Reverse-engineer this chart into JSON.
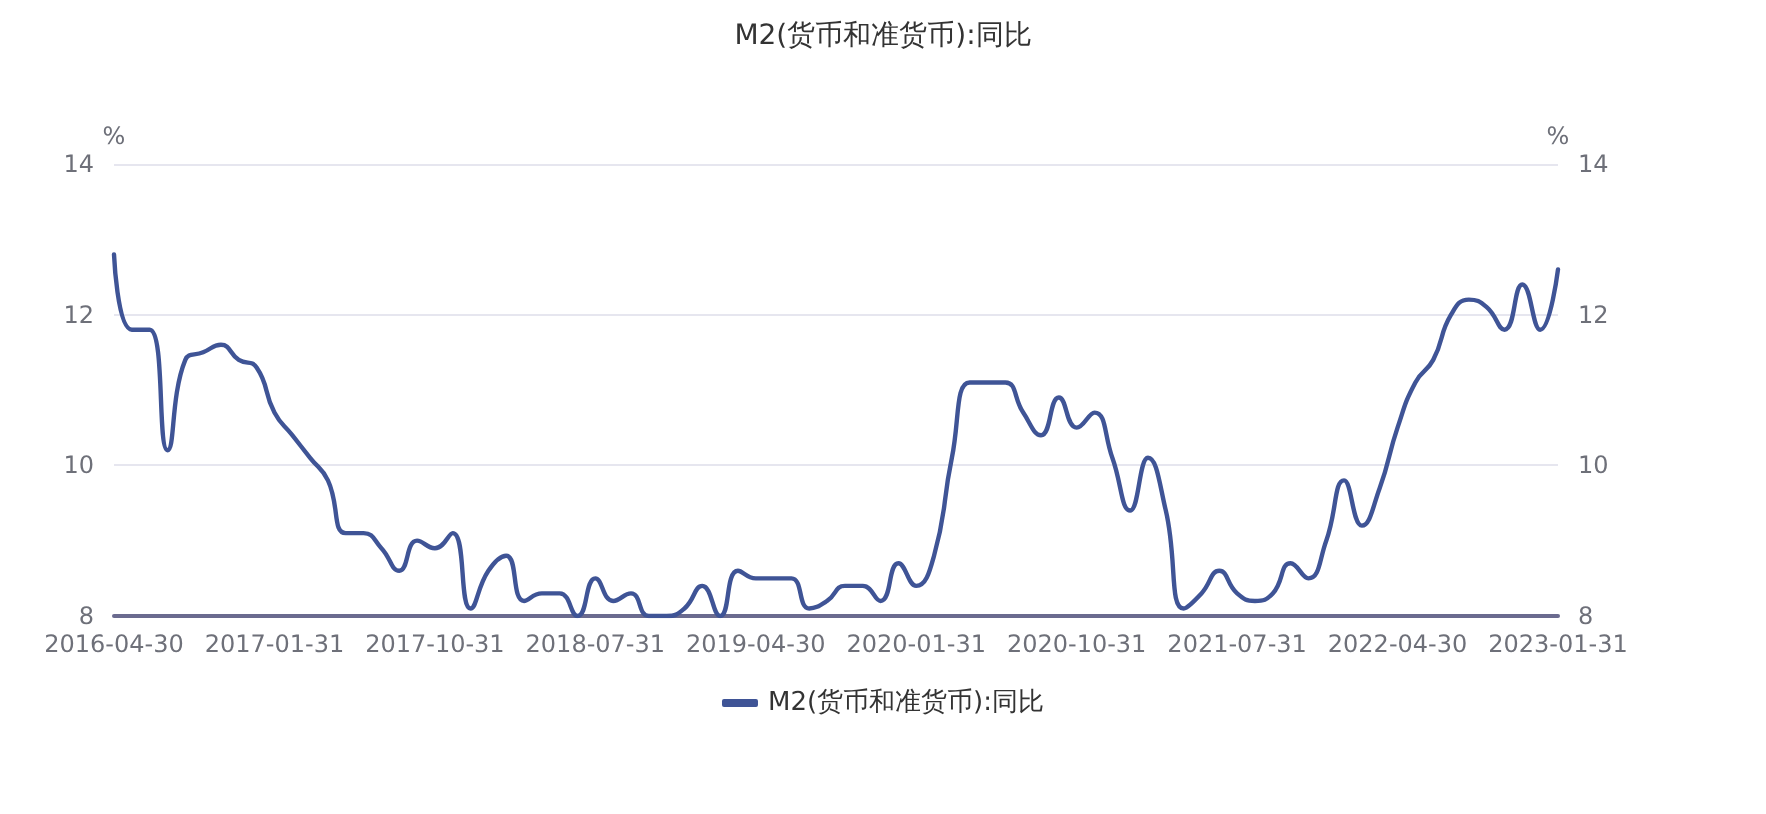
{
  "chart_data": {
    "type": "line",
    "title": "M2(货币和准货币):同比",
    "ylabel": "%",
    "y2label": "%",
    "categories": [
      "2016-04-30",
      null,
      null,
      null,
      null,
      null,
      null,
      null,
      null,
      "2017-01-31",
      null,
      null,
      null,
      null,
      null,
      null,
      null,
      null,
      "2017-10-31",
      null,
      null,
      null,
      null,
      null,
      null,
      null,
      null,
      "2018-07-31",
      null,
      null,
      null,
      null,
      null,
      null,
      null,
      null,
      "2019-04-30",
      null,
      null,
      null,
      null,
      null,
      null,
      null,
      null,
      "2020-01-31",
      null,
      null,
      null,
      null,
      null,
      null,
      null,
      null,
      "2020-10-31",
      null,
      null,
      null,
      null,
      null,
      null,
      null,
      null,
      "2021-07-31",
      null,
      null,
      null,
      null,
      null,
      null,
      null,
      null,
      "2022-04-30",
      null,
      null,
      null,
      null,
      null,
      null,
      null,
      null,
      "2023-01-31"
    ],
    "series": [
      {
        "name": "M2(货币和准货币):同比",
        "color": "#3f5496",
        "values": [
          12.8,
          11.8,
          11.8,
          10.2,
          11.4,
          11.5,
          11.6,
          11.4,
          11.3,
          10.7,
          10.4,
          10.1,
          9.8,
          9.1,
          9.1,
          8.9,
          8.6,
          9.0,
          8.9,
          9.1,
          8.1,
          8.6,
          8.8,
          8.2,
          8.3,
          8.3,
          8.0,
          8.5,
          8.2,
          8.3,
          8.0,
          8.0,
          8.1,
          8.4,
          8.0,
          8.6,
          8.5,
          8.5,
          8.5,
          8.1,
          8.2,
          8.4,
          8.4,
          8.2,
          8.7,
          8.4,
          8.8,
          10.1,
          11.1,
          11.1,
          11.1,
          10.7,
          10.4,
          10.9,
          10.5,
          10.7,
          10.1,
          9.4,
          10.1,
          9.4,
          8.1,
          8.3,
          8.6,
          8.3,
          8.2,
          8.3,
          8.7,
          8.5,
          9.0,
          9.8,
          9.2,
          9.7,
          10.5,
          11.1,
          11.4,
          12.0,
          12.2,
          12.1,
          11.8,
          12.4,
          11.8,
          12.6
        ]
      }
    ],
    "ylim": [
      8,
      14
    ],
    "yticks": [
      8,
      10,
      12,
      14
    ],
    "y2lim": [
      8,
      14
    ],
    "y2ticks": [
      8,
      10,
      12,
      14
    ],
    "grid": "y",
    "legend": "bottom",
    "marker": "none",
    "line_style": "solid"
  }
}
